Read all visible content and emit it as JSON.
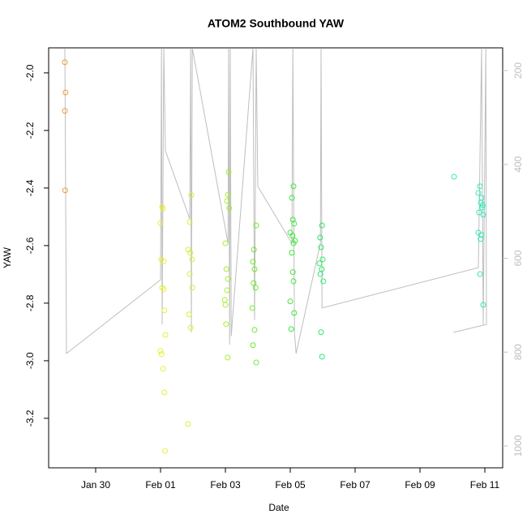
{
  "chart_data": {
    "type": "scatter",
    "title": "ATOM2 Southbound YAW",
    "x_label": "Date",
    "y_label": "YAW",
    "xlim": [
      28.55,
      42.55
    ],
    "xticks": [
      {
        "value": 30,
        "label": "Jan 30"
      },
      {
        "value": 32,
        "label": "Feb 01"
      },
      {
        "value": 34,
        "label": "Feb 03"
      },
      {
        "value": 36,
        "label": "Feb 05"
      },
      {
        "value": 38,
        "label": "Feb 07"
      },
      {
        "value": 40,
        "label": "Feb 09"
      },
      {
        "value": 42,
        "label": "Feb 11"
      }
    ],
    "ylim": [
      -3.372,
      -1.913
    ],
    "yticks": [
      {
        "value": -2,
        "label": "-2.0"
      },
      -2.2,
      -2.4,
      -2.6,
      -2.8,
      {
        "value": -3,
        "label": "-3.0"
      },
      -3.2
    ],
    "y2lim": [
      1046.6,
      151.6
    ],
    "y2ticks": [
      200,
      400,
      600,
      800,
      1000
    ],
    "y2_color": "#bebebe",
    "series": [
      {
        "type": "line",
        "axis": "y2",
        "color": "#bebebe",
        "x": [
          29.05,
          29.1,
          32.0,
          32.03,
          32.05,
          32.1,
          32.15,
          32.9,
          32.93,
          32.95,
          32.98,
          34.08,
          34.1,
          34.13,
          34.15,
          34.18,
          34.85,
          34.9,
          34.95,
          35.0,
          36.05,
          36.08,
          36.13,
          36.18,
          36.93,
          36.95,
          36.98,
          41.8,
          41.9,
          41.95,
          42.03,
          42.05,
          41.03
        ],
        "values": [
          152,
          803,
          646,
          152,
          741,
          152,
          371,
          516,
          152,
          758,
          152,
          568,
          152,
          784,
          152,
          766,
          152,
          732,
          152,
          447,
          568,
          152,
          758,
          803,
          568,
          152,
          706,
          620,
          152,
          741,
          152,
          741,
          758
        ]
      },
      {
        "color": "#f39a3c",
        "x": [
          29.05,
          29.07,
          29.05,
          29.06
        ],
        "values": [
          -1.963,
          -2.068,
          -2.132,
          -2.408
        ]
      },
      {
        "color": "#e8ef3a",
        "x": [
          32.05,
          32.07,
          32.0,
          32.02,
          32.1,
          32.05,
          32.1,
          32.12,
          32.15,
          32.0,
          32.03,
          32.08,
          32.12,
          32.14
        ],
        "values": [
          -2.465,
          -2.473,
          -2.521,
          -2.648,
          -2.654,
          -2.746,
          -2.752,
          -2.825,
          -2.91,
          -2.966,
          -2.977,
          -3.028,
          -3.11,
          -3.313
        ]
      },
      {
        "color": "#d6f03a",
        "x": [
          32.95,
          32.9,
          32.85,
          32.92,
          32.97,
          32.9,
          32.98,
          32.88,
          32.93,
          32.85
        ],
        "values": [
          -2.425,
          -2.518,
          -2.614,
          -2.625,
          -2.648,
          -2.699,
          -2.746,
          -2.839,
          -2.885,
          -3.22
        ]
      },
      {
        "color": "#a8ee30",
        "x": [
          34.1,
          34.08,
          34.05,
          34.12,
          34.0,
          34.03,
          34.08,
          34.05,
          33.98,
          34.0,
          34.02,
          34.07
        ],
        "values": [
          -2.344,
          -2.423,
          -2.445,
          -2.47,
          -2.592,
          -2.682,
          -2.716,
          -2.755,
          -2.789,
          -2.806,
          -2.873,
          -2.989
        ]
      },
      {
        "color": "#6fe830",
        "x": [
          34.95,
          34.88,
          34.85,
          34.9,
          34.87,
          34.93,
          34.83,
          34.9,
          34.85,
          34.95
        ],
        "values": [
          -2.53,
          -2.614,
          -2.656,
          -2.682,
          -2.73,
          -2.746,
          -2.817,
          -2.893,
          -2.946,
          -3.006
        ]
      },
      {
        "color": "#3ee83a",
        "x": [
          36.1,
          36.05,
          36.08,
          36.12,
          36.0,
          36.07,
          36.15,
          36.1,
          36.05,
          36.08,
          36.0,
          36.12,
          36.03,
          36.1
        ],
        "values": [
          -2.394,
          -2.434,
          -2.51,
          -2.524,
          -2.555,
          -2.566,
          -2.583,
          -2.592,
          -2.625,
          -2.692,
          -2.794,
          -2.834,
          -2.89,
          -2.724
        ]
      },
      {
        "color": "#2be86a",
        "x": [
          36.98,
          36.92,
          36.95,
          37.0,
          36.9,
          36.97,
          36.93,
          37.02,
          36.95,
          36.98
        ],
        "values": [
          -2.53,
          -2.572,
          -2.606,
          -2.648,
          -2.662,
          -2.682,
          -2.699,
          -2.724,
          -2.901,
          -2.986
        ]
      },
      {
        "color": "#2ee8b8",
        "x": [
          41.05,
          41.85,
          41.8,
          41.9,
          41.88,
          41.93,
          41.82,
          41.95,
          41.87,
          41.9,
          41.85,
          41.95,
          41.92,
          41.8
        ],
        "values": [
          -2.361,
          -2.394,
          -2.417,
          -2.434,
          -2.451,
          -2.459,
          -2.485,
          -2.493,
          -2.577,
          -2.563,
          -2.699,
          -2.806,
          -2.468,
          -2.555
        ]
      }
    ]
  }
}
